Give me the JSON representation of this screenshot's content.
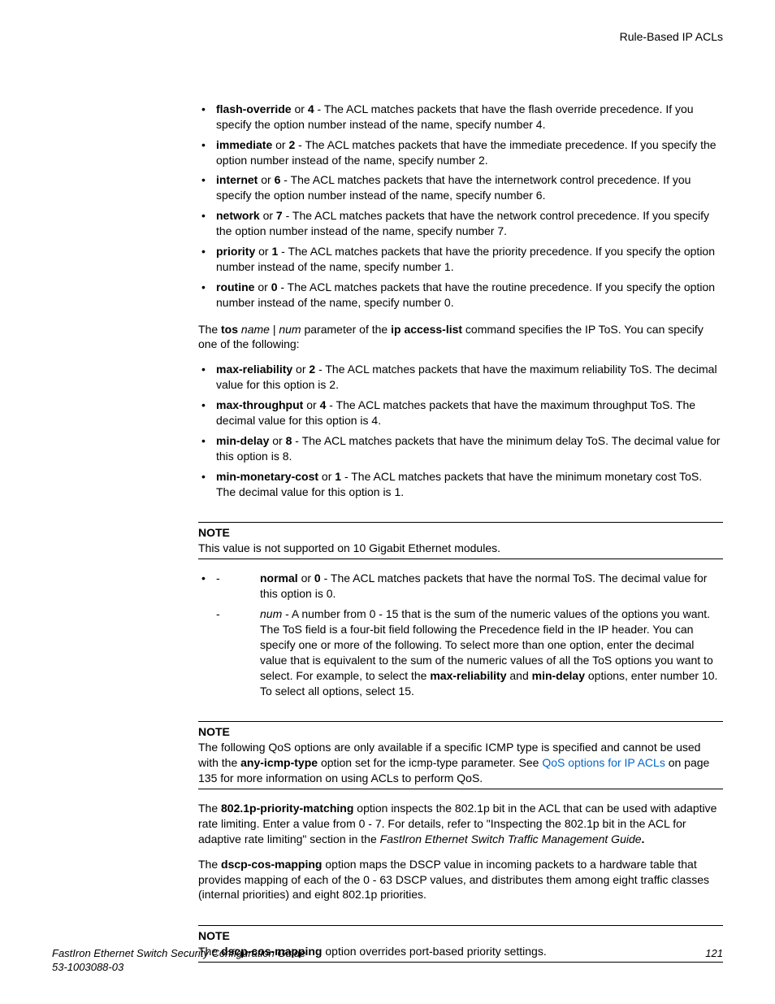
{
  "header": {
    "right": "Rule-Based IP ACLs"
  },
  "list1": [
    {
      "b1": "flash-override",
      "b2": "4",
      "rest": " - The ACL matches packets that have the flash override precedence. If you specify the option number instead of the name, specify number 4."
    },
    {
      "b1": "immediate",
      "b2": "2",
      "rest": " - The ACL matches packets that have the immediate precedence. If you specify the option number instead of the name, specify number 2."
    },
    {
      "b1": "internet",
      "b2": "6",
      "rest": " - The ACL matches packets that have the internetwork control precedence. If you specify the option number instead of the name, specify number 6."
    },
    {
      "b1": "network",
      "b2": "7",
      "rest": " - The ACL matches packets that have the network control precedence. If you specify the option number instead of the name, specify number 7."
    },
    {
      "b1": "priority",
      "b2": "1",
      "rest": " - The ACL matches packets that have the priority precedence. If you specify the option number instead of the name, specify number 1."
    },
    {
      "b1": "routine",
      "b2": "0",
      "rest": " - The ACL matches packets that have the routine precedence. If you specify the option number instead of the name, specify number 0."
    }
  ],
  "tos_para": {
    "pre": "The ",
    "b1": "tos",
    "mid1": " ",
    "i1": "name",
    "mid2": " | ",
    "i2": "num",
    "mid3": " parameter of the ",
    "b2": "ip access-list",
    "post": " command specifies the IP ToS. You can specify one of the following:"
  },
  "list2": [
    {
      "b1": "max-reliability",
      "b2": "2",
      "rest": " - The ACL matches packets that have the maximum reliability ToS. The decimal value for this option is 2."
    },
    {
      "b1": "max-throughput",
      "b2": "4",
      "rest": " - The ACL matches packets that have the maximum throughput ToS. The decimal value for this option is 4."
    },
    {
      "b1": "min-delay",
      "b2": "8",
      "rest": " - The ACL matches packets that have the minimum delay ToS. The decimal value for this option is 8."
    },
    {
      "b1": "min-monetary-cost",
      "b2": "1",
      "rest": " - The ACL matches packets that have the minimum monetary cost ToS. The decimal value for this option is 1."
    }
  ],
  "note1": {
    "title": "NOTE",
    "body": "This value is not supported on 10 Gigabit Ethernet modules."
  },
  "sub_outer": {
    "b1": "normal",
    "b2": "0",
    "rest": " - The ACL matches packets that have the normal ToS. The decimal value for this option is 0."
  },
  "sub_inner": {
    "i1": "num",
    "mid1": " - A number from 0 - 15 that is the sum of the numeric values of the options you want. The ToS field is a four-bit field following the Precedence field in the IP header. You can specify one or more of the following. To select more than one option, enter the decimal value that is equivalent to the sum of the numeric values of all the ToS options you want to select. For example, to select the ",
    "b1": "max-reliability",
    "mid2": " and ",
    "b2": "min-delay",
    "post": " options, enter number 10. To select all options, select 15."
  },
  "note2": {
    "title": "NOTE",
    "pre": "The following QoS options are only available if a specific ICMP type is specified and cannot be used with the ",
    "b1": "any-icmp-type",
    "mid": " option set for the icmp-type parameter. See ",
    "link": "QoS options for IP ACLs",
    "post": " on page 135 for more information on using ACLs to perform QoS."
  },
  "para_8021p": {
    "pre": "The ",
    "b1": "802.1p-priority-matching",
    "mid": " option inspects the 802.1p bit in the ACL that can be used with adaptive rate limiting. Enter a value from 0 - 7. For details, refer to \"Inspecting the 802.1p bit in the ACL for adaptive rate limiting\" section in the ",
    "i1": "FastIron Ethernet Switch Traffic Management Guide",
    "b2": "."
  },
  "para_dscp": {
    "pre": "The ",
    "b1": "dscp-cos-mapping",
    "post": " option maps the DSCP value in incoming packets to a hardware table that provides mapping of each of the 0 - 63 DSCP values, and distributes them among eight traffic classes (internal priorities) and eight 802.1p priorities."
  },
  "note3": {
    "title": "NOTE",
    "pre": "The ",
    "b1": "dscp-cos-mapping",
    "post": " option overrides port-based priority settings."
  },
  "footer": {
    "title": "FastIron Ethernet Switch Security Configuration Guide",
    "docnum": "53-1003088-03",
    "page": "121"
  }
}
